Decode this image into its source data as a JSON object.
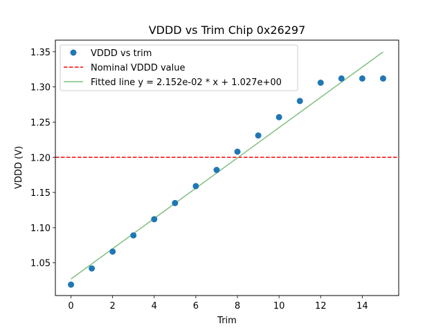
{
  "chart_data": {
    "type": "scatter",
    "title": "VDDD vs Trim Chip 0x26297",
    "xlabel": "Trim",
    "ylabel": "VDDD (V)",
    "xlim": [
      -0.75,
      15.75
    ],
    "ylim": [
      1.0035,
      1.3665
    ],
    "xticks": [
      0,
      2,
      4,
      6,
      8,
      10,
      12,
      14
    ],
    "xtick_labels": [
      "0",
      "2",
      "4",
      "6",
      "8",
      "10",
      "12",
      "14"
    ],
    "yticks": [
      1.05,
      1.1,
      1.15,
      1.2,
      1.25,
      1.3,
      1.35
    ],
    "ytick_labels": [
      "1.05",
      "1.10",
      "1.15",
      "1.20",
      "1.25",
      "1.30",
      "1.35"
    ],
    "grid": false,
    "legend_position": "top-left",
    "series": [
      {
        "name": "VDDD vs trim",
        "kind": "scatter",
        "color": "#1f77b4",
        "x": [
          0,
          1,
          2,
          3,
          4,
          5,
          6,
          7,
          8,
          9,
          10,
          11,
          12,
          13,
          14,
          15
        ],
        "y": [
          1.019,
          1.042,
          1.066,
          1.089,
          1.112,
          1.135,
          1.159,
          1.182,
          1.208,
          1.231,
          1.257,
          1.28,
          1.306,
          1.312,
          1.312,
          1.312
        ]
      },
      {
        "name": "Nominal VDDD value",
        "kind": "hline",
        "color": "#ff0000",
        "style": "dashed",
        "y": 1.2
      },
      {
        "name": "Fitted line y = 2.152e-02 * x + 1.027e+00",
        "kind": "line",
        "color": "#7fbf7f",
        "slope": 0.02152,
        "intercept": 1.027,
        "x": [
          0,
          15
        ]
      }
    ]
  }
}
